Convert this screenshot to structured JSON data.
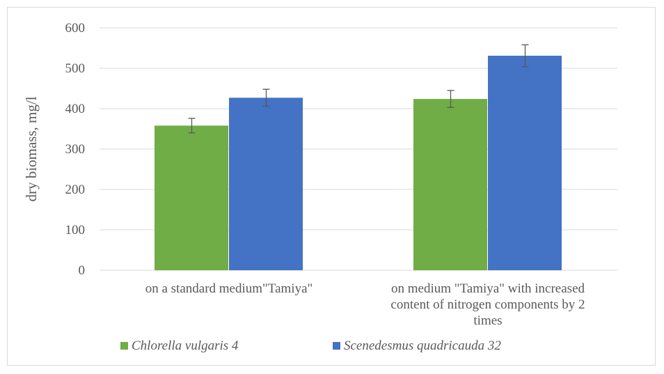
{
  "chart_data": {
    "type": "bar",
    "title": "",
    "xlabel": "",
    "ylabel": "dry biomass, mg/l",
    "ylim": [
      0,
      600
    ],
    "yticks": [
      0,
      100,
      200,
      300,
      400,
      500,
      600
    ],
    "grid": true,
    "legend_position": "bottom-left",
    "categories": [
      [
        "on a standard medium\"Tamiya\""
      ],
      [
        "on medium \"Tamiya\" with increased",
        "content of nitrogen components by 2",
        "times"
      ]
    ],
    "series": [
      {
        "name": "Chlorella vulgaris 4",
        "color": "#70ad47",
        "values": [
          358,
          424
        ],
        "errors": [
          18,
          21
        ]
      },
      {
        "name": "Scenedesmus quadricauda 32",
        "color": "#4472c4",
        "values": [
          427,
          531
        ],
        "errors": [
          21,
          27
        ]
      }
    ]
  }
}
